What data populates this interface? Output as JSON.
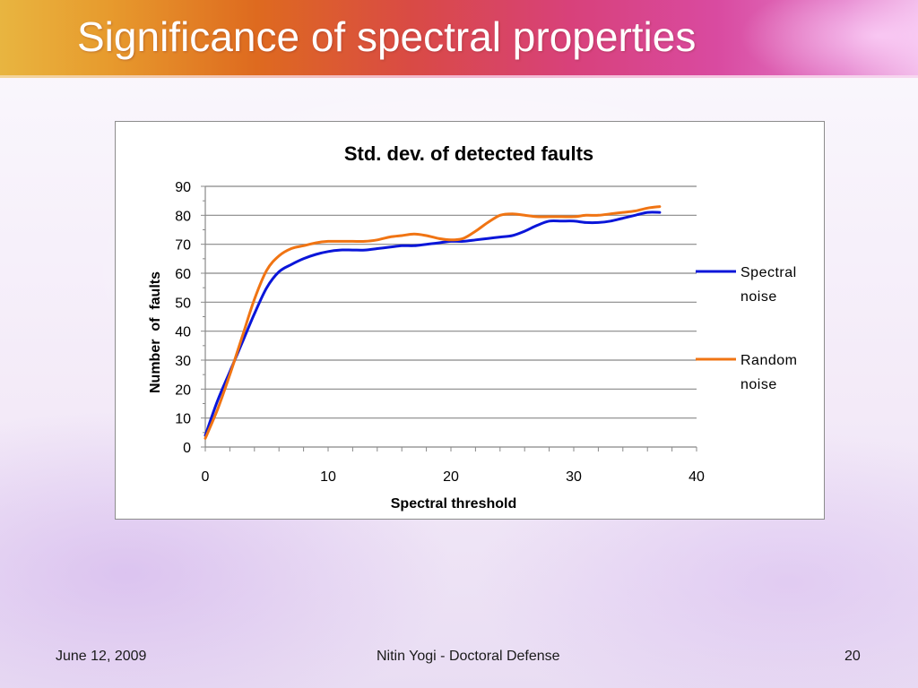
{
  "slide": {
    "title": "Significance of spectral properties",
    "footer_left": "June 12, 2009",
    "footer_center": "Nitin Yogi - Doctoral Defense",
    "footer_right": "20"
  },
  "colors": {
    "series_spectral": "#0a16d9",
    "series_random": "#f07413",
    "grid": "#888888",
    "title_text": "#ffffff"
  },
  "chart_data": {
    "type": "line",
    "title": "Std. dev. of detected faults",
    "xlabel": "Spectral threshold",
    "ylabel": "Number  of  faults",
    "xlim": [
      0,
      40
    ],
    "ylim": [
      0,
      90
    ],
    "xticks": [
      0,
      10,
      20,
      30,
      40
    ],
    "yticks": [
      0,
      10,
      20,
      30,
      40,
      50,
      60,
      70,
      80,
      90
    ],
    "grid": true,
    "legend_position": "right",
    "series": [
      {
        "name_lines": [
          "Spectral",
          "noise"
        ],
        "color": "#0a16d9",
        "x": [
          0,
          1,
          2,
          3,
          4,
          5,
          6,
          7,
          8,
          9,
          10,
          11,
          12,
          13,
          14,
          15,
          16,
          17,
          18,
          19,
          20,
          21,
          22,
          23,
          24,
          25,
          26,
          27,
          28,
          29,
          30,
          31,
          32,
          33,
          34,
          35,
          36,
          37
        ],
        "y": [
          4,
          16,
          26,
          36,
          46,
          55,
          60.5,
          63,
          65,
          66.5,
          67.5,
          68,
          68,
          68,
          68.5,
          69,
          69.5,
          69.5,
          70,
          70.5,
          71,
          71,
          71.5,
          72,
          72.5,
          73,
          74.5,
          76.5,
          78,
          78,
          78,
          77.5,
          77.5,
          78,
          79,
          80,
          81,
          81
        ]
      },
      {
        "name_lines": [
          "Random",
          "noise"
        ],
        "color": "#f07413",
        "x": [
          0,
          1,
          2,
          3,
          4,
          5,
          6,
          7,
          8,
          9,
          10,
          11,
          12,
          13,
          14,
          15,
          16,
          17,
          18,
          19,
          20,
          21,
          22,
          23,
          24,
          25,
          26,
          27,
          28,
          29,
          30,
          31,
          32,
          33,
          34,
          35,
          36,
          37
        ],
        "y": [
          3,
          13,
          25,
          38,
          51,
          61,
          66,
          68.5,
          69.5,
          70.5,
          71,
          71,
          71,
          71,
          71.5,
          72.5,
          73,
          73.5,
          73,
          72,
          71.5,
          72,
          74.5,
          77.5,
          80,
          80.5,
          80,
          79.5,
          79.5,
          79.5,
          79.5,
          80,
          80,
          80.5,
          81,
          81.5,
          82.5,
          83
        ]
      }
    ]
  }
}
